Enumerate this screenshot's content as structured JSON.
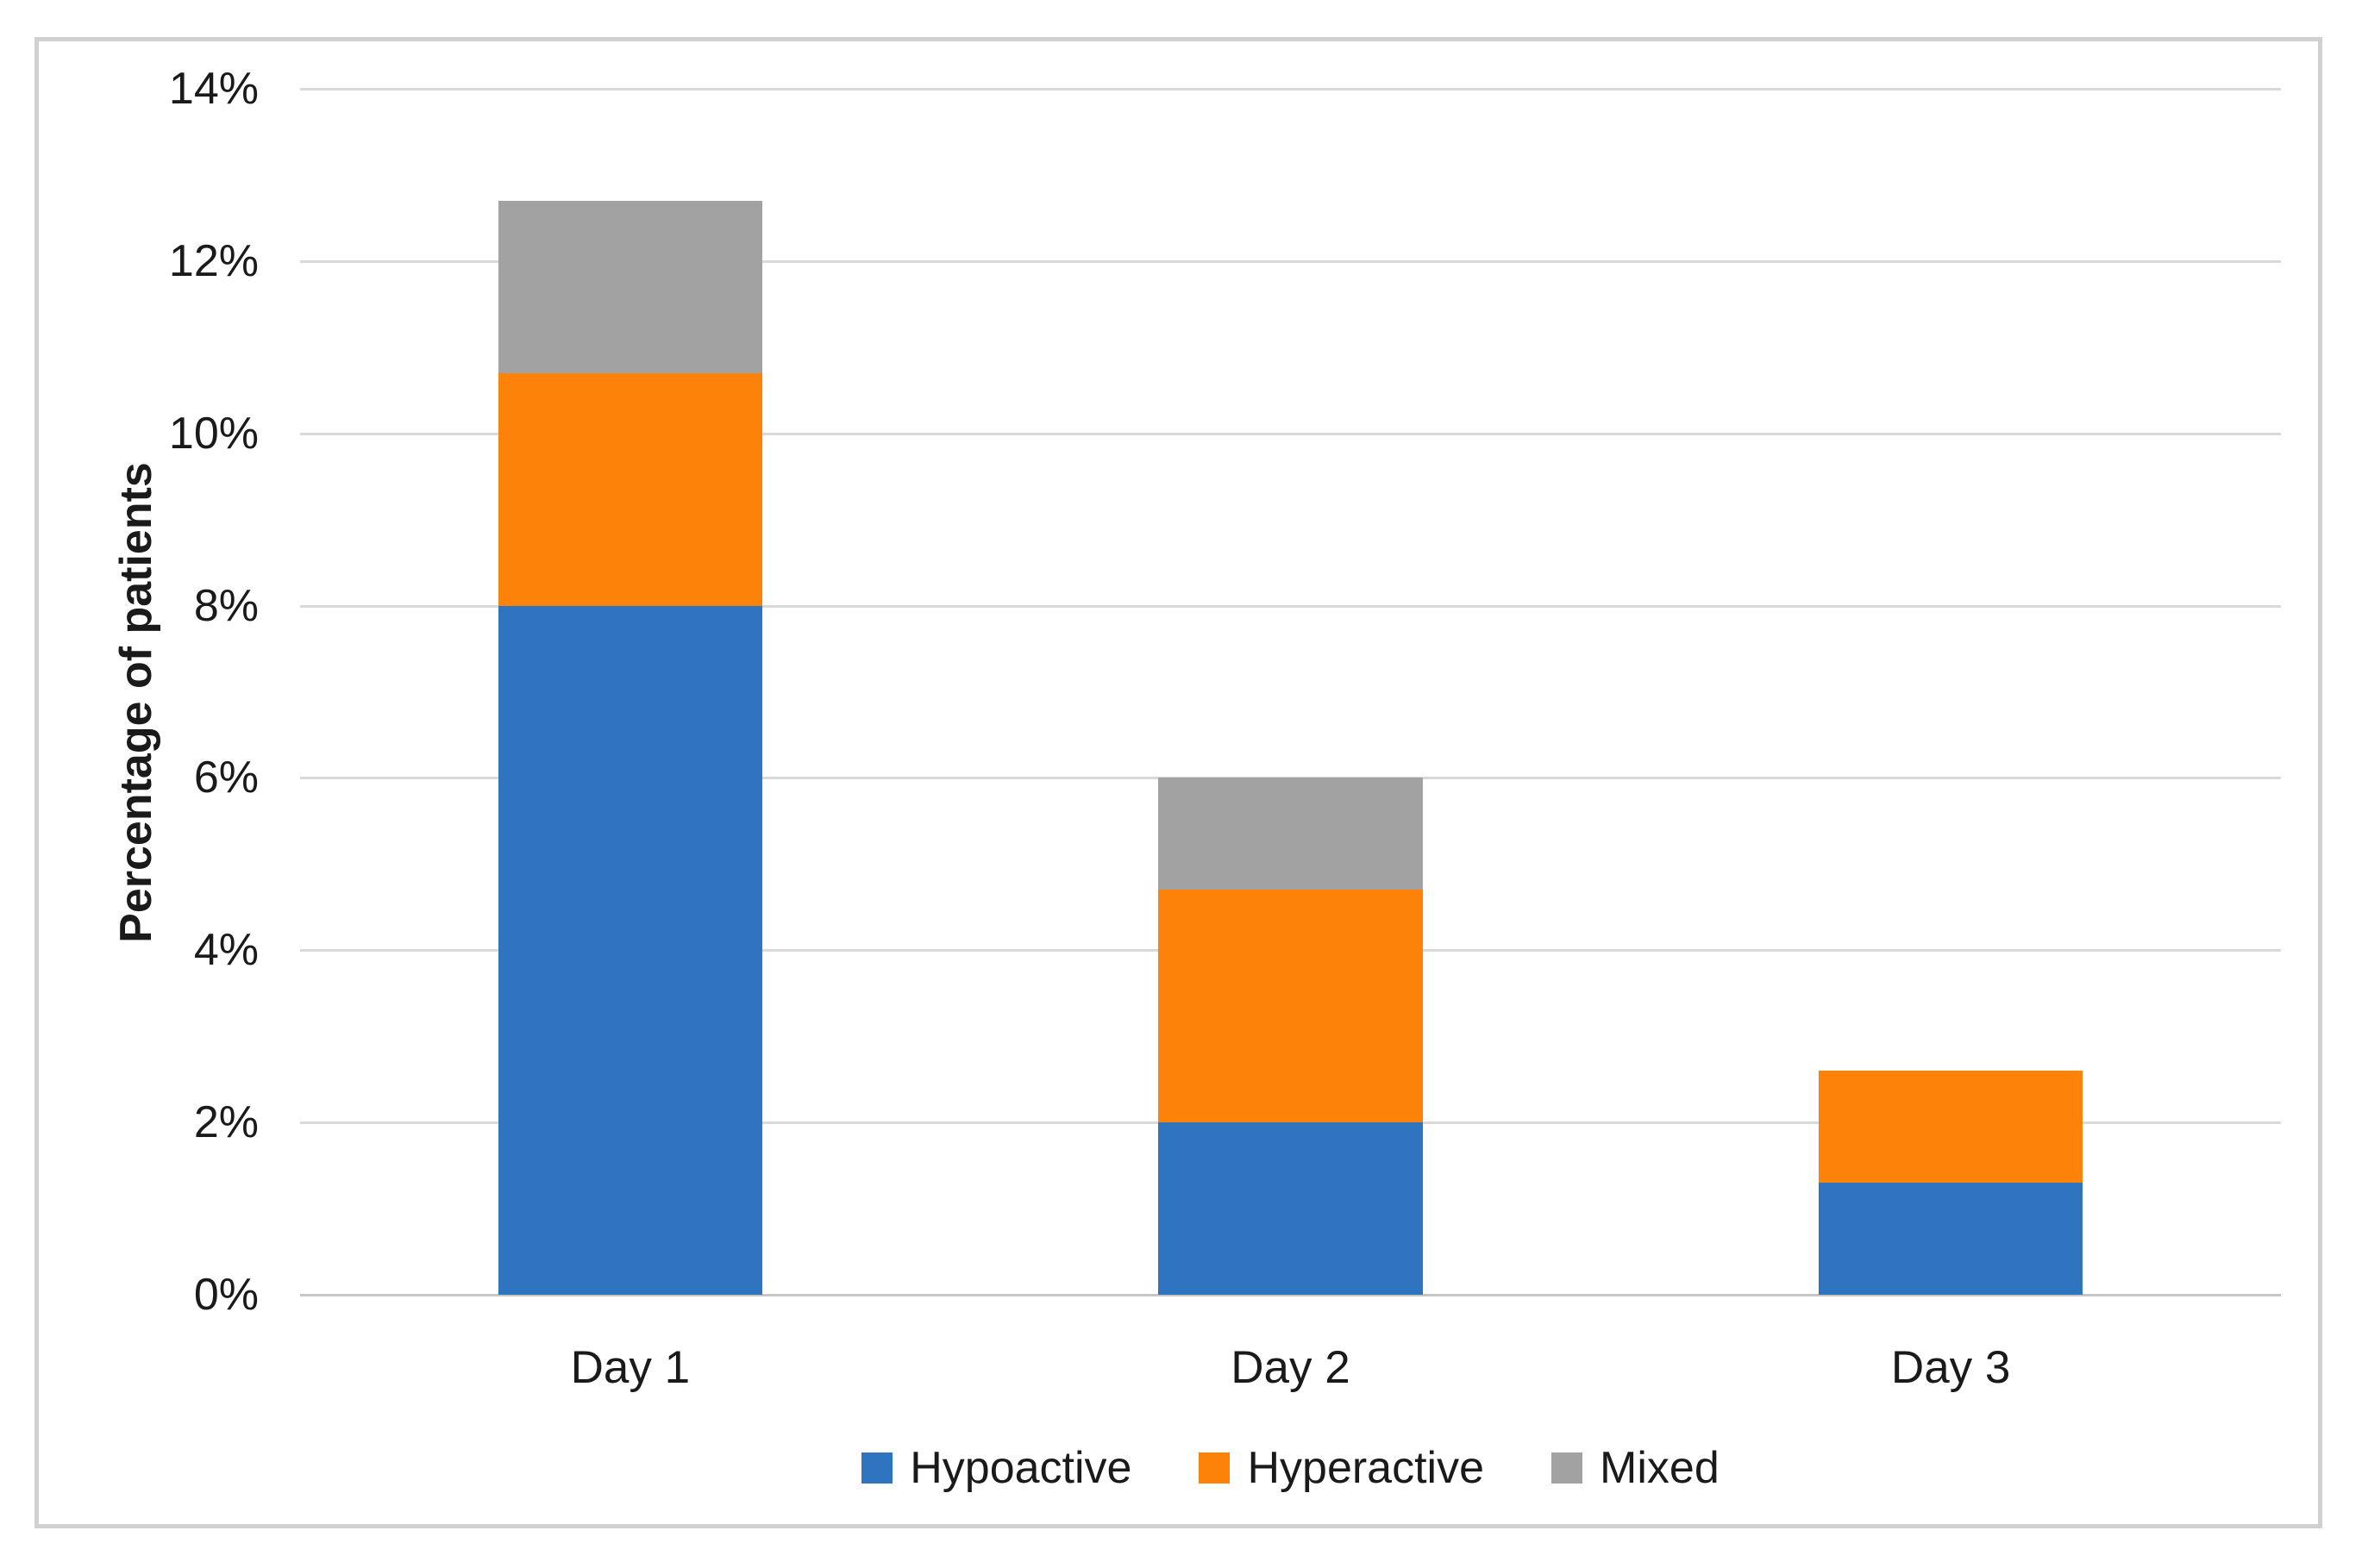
{
  "figure": {
    "background": "#ffffff",
    "frame_border_color": "#d0d0d0"
  },
  "chart_data": {
    "type": "bar",
    "stacked": true,
    "title": "",
    "categories": [
      "Day 1",
      "Day 2",
      "Day 3"
    ],
    "series": [
      {
        "name": "Hypoactive",
        "color": "#2E74BE",
        "values": [
          8.0,
          2.0,
          1.3
        ]
      },
      {
        "name": "Hyperactive",
        "color": "#FC820A",
        "values": [
          2.7,
          2.7,
          1.3
        ]
      },
      {
        "name": "Mixed",
        "color": "#A3A2A2",
        "values": [
          2.0,
          1.3,
          0.0
        ]
      }
    ],
    "stack_totals": [
      12.7,
      6.0,
      2.6
    ],
    "xlabel": "",
    "ylabel": "Percentage of patients",
    "ylim": [
      0,
      14
    ],
    "ytick_step": 2,
    "ytick_labels": [
      "0%",
      "2%",
      "4%",
      "6%",
      "8%",
      "10%",
      "12%",
      "14%"
    ],
    "grid": "horizontal",
    "gridline_color": "#D9D9D9",
    "baseline_color": "#C6C6C6",
    "legend_position": "bottom",
    "legend_marker_shape": "square",
    "text_color": "#1a1a1a",
    "bar_gap_ratio": 1.5
  }
}
